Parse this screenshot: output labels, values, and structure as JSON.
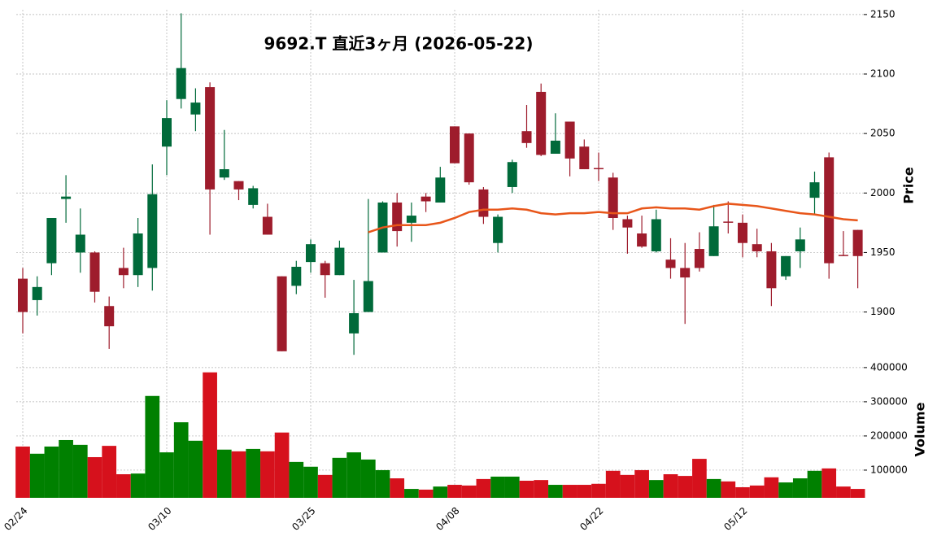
{
  "chart_data": {
    "type": "candlestick",
    "title": "9692.T 直近3ヶ月 (2026-05-22)",
    "y_label": "Price",
    "y2_label": "Volume",
    "categories": [
      "02/24",
      null,
      null,
      null,
      null,
      null,
      null,
      null,
      null,
      null,
      "03/10",
      null,
      null,
      null,
      null,
      null,
      null,
      null,
      null,
      null,
      "03/25",
      null,
      null,
      null,
      null,
      null,
      null,
      null,
      null,
      null,
      "04/08",
      null,
      null,
      null,
      null,
      null,
      null,
      null,
      null,
      null,
      "04/22",
      null,
      null,
      null,
      null,
      null,
      null,
      null,
      null,
      null,
      "05/12",
      null,
      null,
      null,
      null,
      null,
      null,
      null,
      null
    ],
    "open": [
      1928,
      1910,
      1941,
      1995,
      1950,
      1950,
      1905,
      1937,
      1931,
      1937,
      2039,
      2079,
      2066,
      2089,
      2013,
      2010,
      1990,
      1980,
      1930,
      1922,
      1942,
      1941,
      1931,
      1882,
      1900,
      1950,
      1992,
      1975,
      1997,
      1992,
      2056,
      2050,
      2003,
      1958,
      2005,
      2052,
      2085,
      2033,
      2060,
      2039,
      2021,
      2013,
      1978,
      1966,
      1951,
      1944,
      1937,
      1953,
      1947,
      1976,
      1975,
      1957,
      1951,
      1930,
      1951,
      1996,
      2030,
      1948,
      1969
    ],
    "high": [
      1937,
      1930,
      1979,
      2015,
      1987,
      1951,
      1913,
      1954,
      1979,
      2024,
      2078,
      2151,
      2088,
      2093,
      2053,
      2010,
      2006,
      1991,
      1930,
      1943,
      1961,
      1943,
      1960,
      1927,
      1995,
      1993,
      2000,
      1992,
      2000,
      2022,
      2056,
      2050,
      2005,
      1982,
      2028,
      2074,
      2092,
      2067,
      2060,
      2045,
      2034,
      2017,
      1981,
      1981,
      1986,
      1962,
      1958,
      1967,
      1990,
      1993,
      1982,
      1970,
      1958,
      1947,
      1971,
      2018,
      2034,
      1968,
      1969
    ],
    "low": [
      1882,
      1897,
      1931,
      1975,
      1933,
      1908,
      1869,
      1920,
      1921,
      1918,
      2015,
      2071,
      2052,
      1965,
      2011,
      1994,
      1987,
      1965,
      1867,
      1915,
      1933,
      1912,
      1931,
      1864,
      1900,
      1950,
      1955,
      1959,
      1984,
      1992,
      2025,
      2007,
      1974,
      1950,
      2000,
      2038,
      2031,
      2033,
      2014,
      2020,
      2010,
      1969,
      1949,
      1954,
      1950,
      1928,
      1890,
      1934,
      1947,
      1966,
      1946,
      1946,
      1905,
      1927,
      1937,
      1982,
      1928,
      1947,
      1920
    ],
    "close": [
      1900,
      1921,
      1979,
      1997,
      1965,
      1917,
      1888,
      1931,
      1966,
      1999,
      2063,
      2105,
      2076,
      2003,
      2020,
      2003,
      2004,
      1965,
      1867,
      1938,
      1957,
      1931,
      1954,
      1899,
      1926,
      1992,
      1968,
      1981,
      1993,
      2013,
      2025,
      2009,
      1980,
      1980,
      2026,
      2042,
      2032,
      2044,
      2029,
      2020,
      2020,
      1979,
      1971,
      1955,
      1978,
      1937,
      1929,
      1937,
      1972,
      1975,
      1958,
      1951,
      1920,
      1947,
      1961,
      2009,
      1941,
      1947,
      1947
    ],
    "volume": [
      169000,
      148000,
      169000,
      188000,
      174000,
      138000,
      171000,
      88000,
      90000,
      317000,
      152000,
      240000,
      186000,
      386000,
      160000,
      155000,
      162000,
      155000,
      210000,
      124000,
      110000,
      86000,
      136000,
      152000,
      131000,
      100000,
      76000,
      45000,
      43000,
      52000,
      57000,
      55000,
      74000,
      81000,
      81000,
      69000,
      71000,
      57000,
      57000,
      57000,
      60000,
      98000,
      86000,
      100000,
      71000,
      88000,
      83000,
      133000,
      74000,
      67000,
      50000,
      55000,
      79000,
      64000,
      76000,
      98000,
      105000,
      52000,
      45000
    ],
    "ma": [
      null,
      null,
      null,
      null,
      null,
      null,
      null,
      null,
      null,
      null,
      null,
      null,
      null,
      null,
      null,
      null,
      null,
      null,
      null,
      null,
      null,
      null,
      null,
      null,
      1967,
      1971,
      1973,
      1973,
      1973,
      1975,
      1979,
      1984,
      1986,
      1986,
      1987,
      1986,
      1983,
      1982,
      1983,
      1983,
      1984,
      1983,
      1983,
      1987,
      1988,
      1987,
      1987,
      1986,
      1989,
      1991,
      1990,
      1989,
      1987,
      1985,
      1983,
      1982,
      1980,
      1978,
      1977
    ],
    "ylim": [
      1858,
      2154
    ],
    "yticks": [
      1900,
      1950,
      2000,
      2050,
      2100,
      2150
    ],
    "y2lim": [
      19000,
      414000
    ],
    "y2ticks": [
      100000,
      200000,
      300000,
      400000
    ],
    "grid": true,
    "up_color": "#006a3a",
    "down_color": "#9e1c2c",
    "volume_up_color": "#008000",
    "volume_down_color": "#d6111c",
    "ma_color": "#e8561a"
  }
}
